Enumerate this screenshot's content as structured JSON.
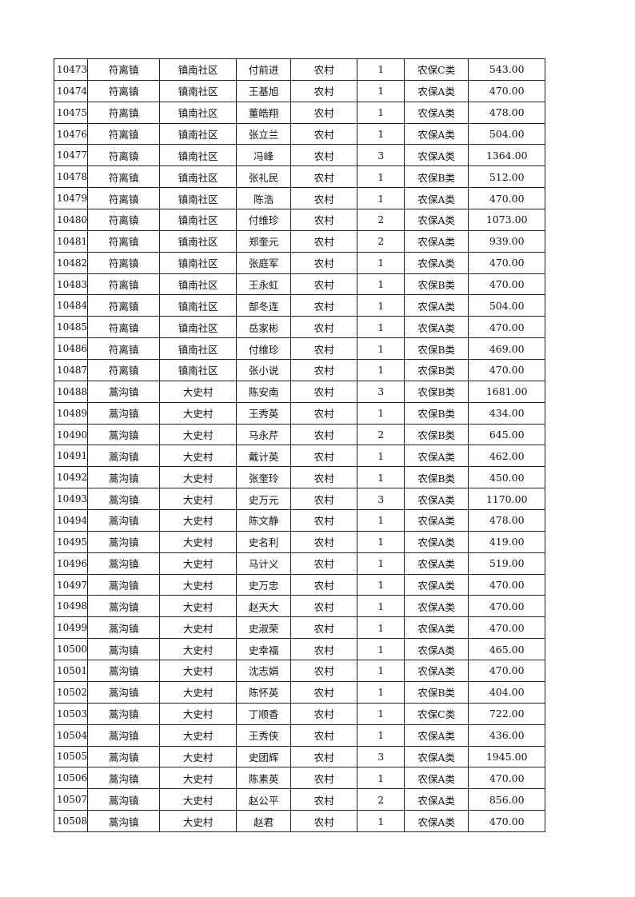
{
  "rows": [
    [
      "10473",
      "符离镇",
      "镇南社区",
      "付前进",
      "农村",
      "1",
      "农保C类",
      "543.00"
    ],
    [
      "10474",
      "符离镇",
      "镇南社区",
      "王基旭",
      "农村",
      "1",
      "农保A类",
      "470.00"
    ],
    [
      "10475",
      "符离镇",
      "镇南社区",
      "董皓翔",
      "农村",
      "1",
      "农保A类",
      "478.00"
    ],
    [
      "10476",
      "符离镇",
      "镇南社区",
      "张立兰",
      "农村",
      "1",
      "农保A类",
      "504.00"
    ],
    [
      "10477",
      "符离镇",
      "镇南社区",
      "冯峰",
      "农村",
      "3",
      "农保A类",
      "1364.00"
    ],
    [
      "10478",
      "符离镇",
      "镇南社区",
      "张礼民",
      "农村",
      "1",
      "农保B类",
      "512.00"
    ],
    [
      "10479",
      "符离镇",
      "镇南社区",
      "陈浩",
      "农村",
      "1",
      "农保A类",
      "470.00"
    ],
    [
      "10480",
      "符离镇",
      "镇南社区",
      "付维珍",
      "农村",
      "2",
      "农保A类",
      "1073.00"
    ],
    [
      "10481",
      "符离镇",
      "镇南社区",
      "郑奎元",
      "农村",
      "2",
      "农保A类",
      "939.00"
    ],
    [
      "10482",
      "符离镇",
      "镇南社区",
      "张庭军",
      "农村",
      "1",
      "农保A类",
      "470.00"
    ],
    [
      "10483",
      "符离镇",
      "镇南社区",
      "王永虹",
      "农村",
      "1",
      "农保B类",
      "470.00"
    ],
    [
      "10484",
      "符离镇",
      "镇南社区",
      "郜冬连",
      "农村",
      "1",
      "农保A类",
      "504.00"
    ],
    [
      "10485",
      "符离镇",
      "镇南社区",
      "岳家彬",
      "农村",
      "1",
      "农保A类",
      "470.00"
    ],
    [
      "10486",
      "符离镇",
      "镇南社区",
      "付维珍",
      "农村",
      "1",
      "农保B类",
      "469.00"
    ],
    [
      "10487",
      "符离镇",
      "镇南社区",
      "张小说",
      "农村",
      "1",
      "农保B类",
      "470.00"
    ],
    [
      "10488",
      "蒿沟镇",
      "大史村",
      "陈安南",
      "农村",
      "3",
      "农保B类",
      "1681.00"
    ],
    [
      "10489",
      "蒿沟镇",
      "大史村",
      "王秀英",
      "农村",
      "1",
      "农保B类",
      "434.00"
    ],
    [
      "10490",
      "蒿沟镇",
      "大史村",
      "马永芹",
      "农村",
      "2",
      "农保B类",
      "645.00"
    ],
    [
      "10491",
      "蒿沟镇",
      "大史村",
      "戴计英",
      "农村",
      "1",
      "农保A类",
      "462.00"
    ],
    [
      "10492",
      "蒿沟镇",
      "大史村",
      "张奎玲",
      "农村",
      "1",
      "农保B类",
      "450.00"
    ],
    [
      "10493",
      "蒿沟镇",
      "大史村",
      "史万元",
      "农村",
      "3",
      "农保A类",
      "1170.00"
    ],
    [
      "10494",
      "蒿沟镇",
      "大史村",
      "陈文静",
      "农村",
      "1",
      "农保A类",
      "478.00"
    ],
    [
      "10495",
      "蒿沟镇",
      "大史村",
      "史名利",
      "农村",
      "1",
      "农保A类",
      "419.00"
    ],
    [
      "10496",
      "蒿沟镇",
      "大史村",
      "马计义",
      "农村",
      "1",
      "农保A类",
      "519.00"
    ],
    [
      "10497",
      "蒿沟镇",
      "大史村",
      "史万忠",
      "农村",
      "1",
      "农保A类",
      "470.00"
    ],
    [
      "10498",
      "蒿沟镇",
      "大史村",
      "赵天大",
      "农村",
      "1",
      "农保A类",
      "470.00"
    ],
    [
      "10499",
      "蒿沟镇",
      "大史村",
      "史淑荣",
      "农村",
      "1",
      "农保A类",
      "470.00"
    ],
    [
      "10500",
      "蒿沟镇",
      "大史村",
      "史幸福",
      "农村",
      "1",
      "农保A类",
      "465.00"
    ],
    [
      "10501",
      "蒿沟镇",
      "大史村",
      "沈志娟",
      "农村",
      "1",
      "农保A类",
      "470.00"
    ],
    [
      "10502",
      "蒿沟镇",
      "大史村",
      "陈怀英",
      "农村",
      "1",
      "农保B类",
      "404.00"
    ],
    [
      "10503",
      "蒿沟镇",
      "大史村",
      "丁顺香",
      "农村",
      "1",
      "农保C类",
      "722.00"
    ],
    [
      "10504",
      "蒿沟镇",
      "大史村",
      "王秀侠",
      "农村",
      "1",
      "农保A类",
      "436.00"
    ],
    [
      "10505",
      "蒿沟镇",
      "大史村",
      "史团辉",
      "农村",
      "3",
      "农保A类",
      "1945.00"
    ],
    [
      "10506",
      "蒿沟镇",
      "大史村",
      "陈素英",
      "农村",
      "1",
      "农保A类",
      "470.00"
    ],
    [
      "10507",
      "蒿沟镇",
      "大史村",
      "赵公平",
      "农村",
      "2",
      "农保A类",
      "856.00"
    ],
    [
      "10508",
      "蒿沟镇",
      "大史村",
      "赵君",
      "农村",
      "1",
      "农保A类",
      "470.00"
    ]
  ]
}
